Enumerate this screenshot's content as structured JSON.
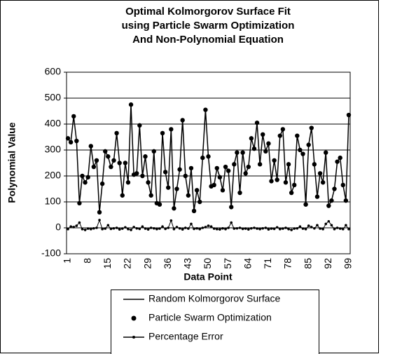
{
  "chart_data": {
    "type": "line",
    "title": [
      "Optimal Kolmorgorov Surface Fit",
      "using Particle Swarm Optimization",
      "And Non-Polynomial Equation"
    ],
    "x_label": "Data Point",
    "y_label": "Polynomial Value",
    "categories": [
      1,
      null,
      null,
      null,
      null,
      null,
      null,
      8,
      null,
      null,
      null,
      null,
      null,
      null,
      15,
      null,
      null,
      null,
      null,
      null,
      null,
      22,
      null,
      null,
      null,
      null,
      null,
      null,
      29,
      null,
      null,
      null,
      null,
      null,
      null,
      36,
      null,
      null,
      null,
      null,
      null,
      null,
      43,
      null,
      null,
      null,
      null,
      null,
      null,
      50,
      null,
      null,
      null,
      null,
      null,
      null,
      57,
      null,
      null,
      null,
      null,
      null,
      null,
      64,
      null,
      null,
      null,
      null,
      null,
      null,
      71,
      null,
      null,
      null,
      null,
      null,
      null,
      78,
      null,
      null,
      null,
      null,
      null,
      null,
      85,
      null,
      null,
      null,
      null,
      null,
      null,
      92,
      null,
      null,
      null,
      null,
      null,
      null,
      99
    ],
    "ylim": [
      -100,
      600
    ],
    "yticks": [
      -100,
      0,
      100,
      200,
      300,
      400,
      500,
      600
    ],
    "grid": true,
    "series": [
      {
        "name": "Random Kolmorgorov Surface",
        "color": "#000000",
        "style": "line",
        "values": [
          345,
          330,
          430,
          335,
          95,
          200,
          175,
          195,
          315,
          235,
          260,
          60,
          170,
          295,
          275,
          235,
          260,
          365,
          250,
          125,
          250,
          175,
          475,
          205,
          210,
          395,
          200,
          275,
          175,
          125,
          295,
          95,
          90,
          365,
          215,
          155,
          380,
          75,
          150,
          225,
          415,
          200,
          125,
          230,
          65,
          145,
          100,
          270,
          455,
          275,
          160,
          165,
          230,
          195,
          145,
          235,
          220,
          80,
          245,
          290,
          135,
          290,
          210,
          235,
          345,
          305,
          405,
          245,
          360,
          295,
          325,
          180,
          260,
          185,
          355,
          380,
          175,
          245,
          135,
          165,
          355,
          300,
          285,
          90,
          320,
          385,
          245,
          120,
          210,
          175,
          290,
          85,
          105,
          150,
          255,
          270,
          165,
          105,
          435
        ]
      },
      {
        "name": "Particle Swarm Optimization",
        "color": "#000000",
        "style": "markers",
        "values": [
          345,
          330,
          430,
          335,
          95,
          200,
          175,
          195,
          315,
          235,
          260,
          60,
          170,
          295,
          275,
          235,
          260,
          365,
          250,
          125,
          250,
          175,
          475,
          205,
          210,
          395,
          200,
          275,
          175,
          125,
          295,
          95,
          90,
          365,
          215,
          155,
          380,
          75,
          150,
          225,
          415,
          200,
          125,
          230,
          65,
          145,
          100,
          270,
          455,
          275,
          160,
          165,
          230,
          195,
          145,
          235,
          220,
          80,
          245,
          290,
          135,
          290,
          210,
          235,
          345,
          305,
          405,
          245,
          360,
          295,
          325,
          180,
          260,
          185,
          355,
          380,
          175,
          245,
          135,
          165,
          355,
          300,
          285,
          90,
          320,
          385,
          245,
          120,
          210,
          175,
          290,
          85,
          105,
          150,
          255,
          270,
          165,
          105,
          435
        ]
      },
      {
        "name": "Percentage Error",
        "color": "#000000",
        "style": "line-markers",
        "values": [
          -5,
          5,
          3,
          8,
          20,
          -5,
          -8,
          -3,
          -5,
          -2,
          0,
          30,
          -5,
          -3,
          10,
          -4,
          -2,
          0,
          -6,
          -3,
          2,
          -5,
          -8,
          3,
          -2,
          -4,
          5,
          -3,
          -6,
          0,
          -2,
          -5,
          -3,
          5,
          -4,
          0,
          28,
          -5,
          3,
          -2,
          -6,
          0,
          -3,
          15,
          -4,
          -2,
          -5,
          0,
          3,
          8,
          5,
          -3,
          -5,
          -6,
          -2,
          -5,
          0,
          20,
          -3,
          -2,
          0,
          -4,
          -3,
          -6,
          -2,
          0,
          -3,
          -5,
          -2,
          0,
          -6,
          -3,
          -4,
          2,
          -5,
          -3,
          0,
          -5,
          -8,
          -3,
          -2,
          5,
          -3,
          -5,
          8,
          3,
          -2,
          10,
          -3,
          -5,
          15,
          25,
          10,
          -5,
          0,
          -3,
          -5,
          10,
          -5
        ]
      }
    ],
    "legend": "bottom"
  }
}
